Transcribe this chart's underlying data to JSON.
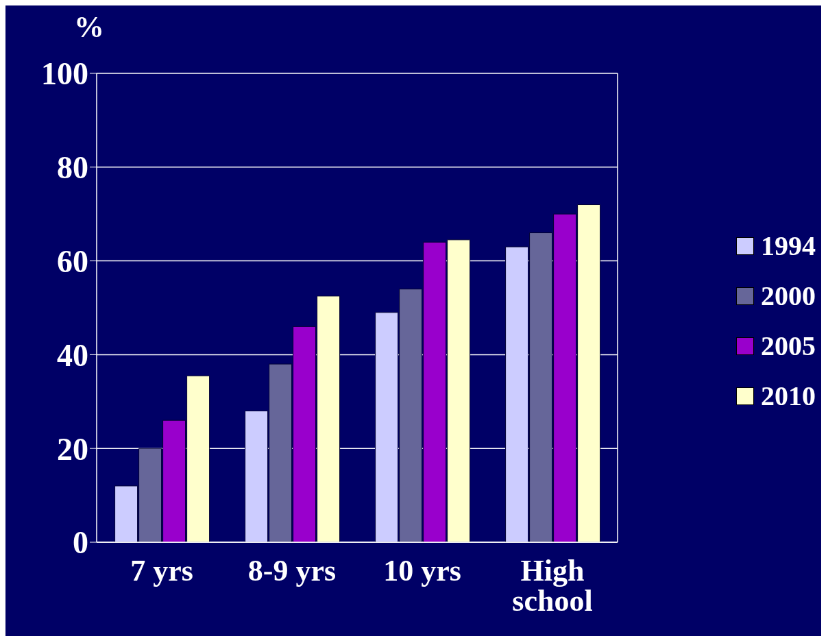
{
  "chart_data": {
    "type": "bar",
    "ylabel": "%",
    "categories": [
      "7 yrs",
      "8-9 yrs",
      "10 yrs",
      "High school"
    ],
    "series": [
      {
        "name": "1994",
        "color": "#ccccff",
        "values": [
          12,
          28,
          49,
          63
        ]
      },
      {
        "name": "2000",
        "color": "#666699",
        "values": [
          20,
          38,
          54,
          66
        ]
      },
      {
        "name": "2005",
        "color": "#9900cc",
        "values": [
          26,
          46,
          64,
          70
        ]
      },
      {
        "name": "2010",
        "color": "#ffffcc",
        "values": [
          35.5,
          52.5,
          64.5,
          72
        ]
      }
    ],
    "ylim": [
      0,
      100
    ],
    "yticks": [
      0,
      20,
      40,
      60,
      80,
      100
    ],
    "grid": "y",
    "legend": "right"
  }
}
